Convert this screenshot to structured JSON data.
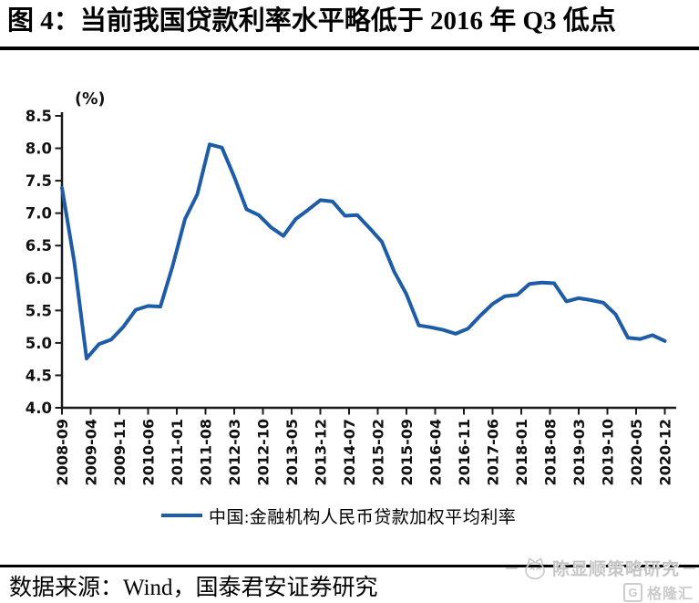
{
  "title": "图 4：当前我国贷款利率水平略低于 2016 年 Q3 低点",
  "source_line": "数据来源：Wind，国泰君安证券研究",
  "watermark": {
    "name": "陈显顺策略研究",
    "brand": "格隆汇",
    "brand_letter": "G"
  },
  "chart_data": {
    "type": "line",
    "unit_label": "(%)",
    "ylim": [
      4.0,
      8.5
    ],
    "ytick_step": 0.5,
    "grid": false,
    "legend_position": "bottom",
    "line_color": "#1E5CA8",
    "axis_color": "#1a1a1a",
    "x_labels": [
      "2008-09",
      "2009-04",
      "2009-11",
      "2010-06",
      "2011-01",
      "2011-08",
      "2012-03",
      "2012-10",
      "2013-05",
      "2013-12",
      "2014-07",
      "2015-02",
      "2015-09",
      "2016-04",
      "2016-11",
      "2017-06",
      "2018-01",
      "2018-08",
      "2019-03",
      "2019-10",
      "2020-05",
      "2020-12"
    ],
    "series": [
      {
        "name": "中国:金融机构人民币贷款加权平均利率",
        "x": [
          "2008-09",
          "2008-12",
          "2009-03",
          "2009-06",
          "2009-09",
          "2009-12",
          "2010-03",
          "2010-06",
          "2010-09",
          "2010-12",
          "2011-03",
          "2011-06",
          "2011-09",
          "2011-12",
          "2012-03",
          "2012-06",
          "2012-09",
          "2012-12",
          "2013-03",
          "2013-06",
          "2013-09",
          "2013-12",
          "2014-03",
          "2014-06",
          "2014-09",
          "2014-12",
          "2015-03",
          "2015-06",
          "2015-09",
          "2015-12",
          "2016-03",
          "2016-06",
          "2016-09",
          "2016-12",
          "2017-03",
          "2017-06",
          "2017-09",
          "2017-12",
          "2018-03",
          "2018-06",
          "2018-09",
          "2018-12",
          "2019-03",
          "2019-06",
          "2019-09",
          "2019-12",
          "2020-03",
          "2020-06",
          "2020-09",
          "2020-12"
        ],
        "values": [
          7.39,
          6.25,
          4.76,
          4.98,
          5.05,
          5.25,
          5.51,
          5.57,
          5.56,
          6.19,
          6.91,
          7.29,
          8.06,
          8.01,
          7.56,
          7.06,
          6.97,
          6.78,
          6.65,
          6.91,
          7.05,
          7.2,
          7.18,
          6.96,
          6.97,
          6.77,
          6.56,
          6.1,
          5.75,
          5.27,
          5.24,
          5.2,
          5.14,
          5.22,
          5.42,
          5.6,
          5.72,
          5.74,
          5.91,
          5.93,
          5.92,
          5.64,
          5.69,
          5.66,
          5.62,
          5.44,
          5.08,
          5.06,
          5.12,
          5.03
        ]
      }
    ]
  }
}
